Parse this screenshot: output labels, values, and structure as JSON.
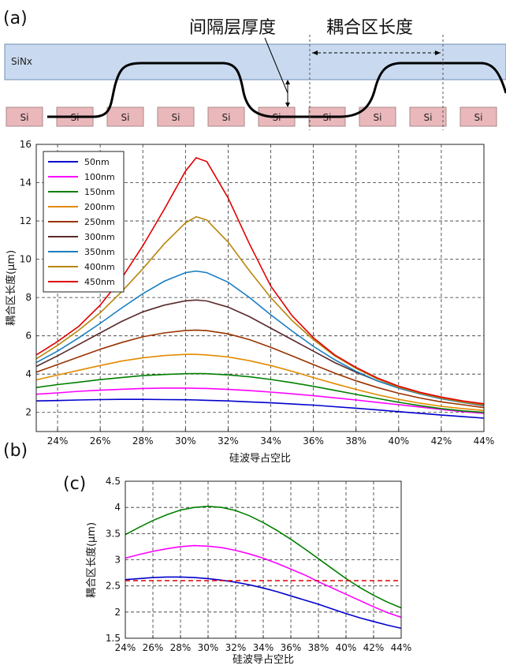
{
  "panel_a": {
    "label": "(a)",
    "sinx_label": "SiNx",
    "si_blocks": [
      "Si",
      "Si",
      "Si",
      "Si",
      "Si",
      "Si",
      "Si",
      "Si",
      "Si",
      "Si"
    ],
    "annotation_spacer": "间隔层厚度",
    "annotation_coupling": "耦合区长度",
    "colors": {
      "sinx_fill": "#c9daf0",
      "si_fill": "#eab8bb"
    }
  },
  "panel_b": {
    "label": "(b)",
    "xlabel": "硅波导占空比",
    "ylabel": "耦合区长度(μm)",
    "x_ticks": [
      "24%",
      "26%",
      "28%",
      "30%",
      "32%",
      "34%",
      "36%",
      "38%",
      "40%",
      "42%",
      "44%"
    ],
    "y_ticks": [
      "2",
      "4",
      "6",
      "8",
      "10",
      "12",
      "14",
      "16"
    ]
  },
  "panel_c": {
    "label": "(c)",
    "xlabel": "硅波导占空比",
    "ylabel": "耦合区长度(μm)",
    "x_ticks": [
      "24%",
      "26%",
      "28%",
      "30%",
      "32%",
      "34%",
      "36%",
      "38%",
      "40%",
      "42%",
      "44%"
    ],
    "y_ticks": [
      "1.5",
      "2",
      "2.5",
      "3",
      "3.5",
      "4",
      "4.5"
    ]
  },
  "chart_data": [
    {
      "type": "line",
      "panel": "b",
      "xlabel": "硅波导占空比",
      "ylabel": "耦合区长度(μm)",
      "xlim": [
        23,
        44
      ],
      "ylim": [
        1,
        16
      ],
      "grid": true,
      "legend": "top-left",
      "x": [
        23,
        24,
        25,
        26,
        27,
        28,
        29,
        30,
        30.5,
        31,
        32,
        33,
        34,
        35,
        36,
        37,
        38,
        39,
        40,
        41,
        42,
        43,
        44
      ],
      "series": [
        {
          "name": "50nm",
          "color": "#0000cc",
          "values": [
            2.6,
            2.62,
            2.65,
            2.67,
            2.68,
            2.68,
            2.67,
            2.66,
            2.65,
            2.63,
            2.6,
            2.55,
            2.5,
            2.44,
            2.38,
            2.3,
            2.22,
            2.13,
            2.04,
            1.95,
            1.86,
            1.78,
            1.7
          ]
        },
        {
          "name": "100nm",
          "color": "#ff00ff",
          "values": [
            2.95,
            3.02,
            3.1,
            3.16,
            3.21,
            3.25,
            3.27,
            3.27,
            3.26,
            3.25,
            3.2,
            3.14,
            3.06,
            2.97,
            2.87,
            2.76,
            2.65,
            2.52,
            2.4,
            2.28,
            2.16,
            2.04,
            1.95
          ]
        },
        {
          "name": "150nm",
          "color": "#008000",
          "values": [
            3.3,
            3.45,
            3.58,
            3.71,
            3.82,
            3.92,
            3.98,
            4.02,
            4.03,
            4.02,
            3.96,
            3.86,
            3.72,
            3.55,
            3.36,
            3.15,
            2.94,
            2.73,
            2.53,
            2.35,
            2.2,
            2.08,
            2.0
          ]
        },
        {
          "name": "200nm",
          "color": "#e38a00",
          "values": [
            3.7,
            3.95,
            4.2,
            4.45,
            4.68,
            4.85,
            4.97,
            5.03,
            5.03,
            5.0,
            4.9,
            4.7,
            4.45,
            4.15,
            3.82,
            3.5,
            3.2,
            2.92,
            2.68,
            2.48,
            2.32,
            2.2,
            2.1
          ]
        },
        {
          "name": "250nm",
          "color": "#993300",
          "values": [
            4.1,
            4.5,
            4.9,
            5.3,
            5.65,
            5.95,
            6.15,
            6.28,
            6.3,
            6.27,
            6.1,
            5.8,
            5.4,
            4.95,
            4.5,
            4.05,
            3.65,
            3.3,
            3.0,
            2.75,
            2.55,
            2.4,
            2.25
          ]
        },
        {
          "name": "300nm",
          "color": "#5a2a2a",
          "values": [
            4.4,
            4.95,
            5.55,
            6.15,
            6.75,
            7.25,
            7.6,
            7.83,
            7.87,
            7.82,
            7.5,
            7.0,
            6.4,
            5.8,
            5.2,
            4.6,
            4.1,
            3.65,
            3.27,
            2.97,
            2.72,
            2.52,
            2.35
          ]
        },
        {
          "name": "350nm",
          "color": "#1a7fc1",
          "values": [
            4.6,
            5.2,
            5.9,
            6.65,
            7.45,
            8.2,
            8.85,
            9.3,
            9.38,
            9.3,
            8.8,
            8.0,
            7.1,
            6.25,
            5.45,
            4.75,
            4.15,
            3.65,
            3.27,
            2.97,
            2.72,
            2.52,
            2.38
          ]
        },
        {
          "name": "400nm",
          "color": "#b8860b",
          "values": [
            4.8,
            5.5,
            6.3,
            7.2,
            8.3,
            9.5,
            10.8,
            11.9,
            12.22,
            12.05,
            10.9,
            9.4,
            8.0,
            6.8,
            5.8,
            4.95,
            4.3,
            3.75,
            3.32,
            3.0,
            2.75,
            2.55,
            2.4
          ]
        },
        {
          "name": "450nm",
          "color": "#e00000",
          "values": [
            5.0,
            5.7,
            6.5,
            7.6,
            9.0,
            10.7,
            12.6,
            14.6,
            15.3,
            15.1,
            13.2,
            10.8,
            8.6,
            7.05,
            5.9,
            5.0,
            4.35,
            3.8,
            3.37,
            3.05,
            2.8,
            2.6,
            2.45
          ]
        }
      ]
    },
    {
      "type": "line",
      "panel": "c",
      "xlabel": "硅波导占空比",
      "ylabel": "耦合区长度(μm)",
      "xlim": [
        24,
        44
      ],
      "ylim": [
        1.5,
        4.5
      ],
      "grid": true,
      "x": [
        24,
        25,
        26,
        27,
        28,
        29,
        30,
        31,
        32,
        33,
        34,
        35,
        36,
        37,
        38,
        39,
        40,
        41,
        42,
        43,
        44
      ],
      "series": [
        {
          "color": "#0000cc",
          "values": [
            2.62,
            2.64,
            2.66,
            2.67,
            2.67,
            2.66,
            2.64,
            2.61,
            2.57,
            2.52,
            2.46,
            2.39,
            2.31,
            2.23,
            2.15,
            2.06,
            1.97,
            1.89,
            1.82,
            1.75,
            1.69
          ]
        },
        {
          "color": "#ff00ff",
          "values": [
            3.03,
            3.1,
            3.16,
            3.21,
            3.25,
            3.27,
            3.26,
            3.23,
            3.18,
            3.11,
            3.03,
            2.93,
            2.82,
            2.71,
            2.58,
            2.46,
            2.34,
            2.22,
            2.1,
            1.99,
            1.9
          ]
        },
        {
          "color": "#008000",
          "values": [
            3.48,
            3.62,
            3.75,
            3.86,
            3.95,
            4.0,
            4.02,
            4.0,
            3.94,
            3.84,
            3.71,
            3.56,
            3.39,
            3.21,
            3.02,
            2.83,
            2.64,
            2.47,
            2.32,
            2.19,
            2.08
          ]
        },
        {
          "color": "#e00000",
          "dashed": true,
          "values": [
            2.6,
            2.6,
            2.6,
            2.6,
            2.6,
            2.6,
            2.6,
            2.6,
            2.6,
            2.6,
            2.6,
            2.6,
            2.6,
            2.6,
            2.6,
            2.6,
            2.6,
            2.6,
            2.6,
            2.6,
            2.6
          ]
        }
      ]
    }
  ]
}
